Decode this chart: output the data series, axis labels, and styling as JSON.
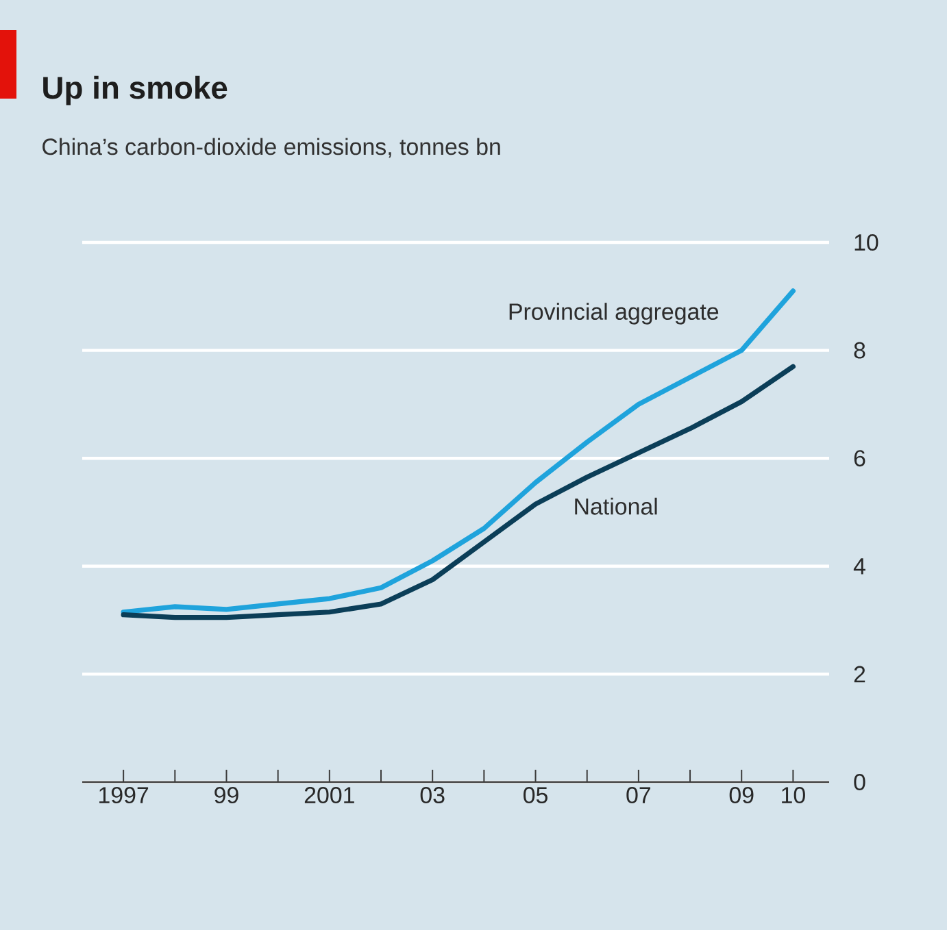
{
  "chart_data": {
    "type": "line",
    "title": "Up in smoke",
    "subtitle": "China’s carbon-dioxide emissions, tonnes bn",
    "x": [
      1997,
      1998,
      1999,
      2000,
      2001,
      2002,
      2003,
      2004,
      2005,
      2006,
      2007,
      2008,
      2009,
      2010
    ],
    "series": [
      {
        "name": "Provincial aggregate",
        "color": "#1fa3dc",
        "values": [
          3.15,
          3.25,
          3.2,
          3.3,
          3.4,
          3.6,
          4.1,
          4.7,
          5.55,
          6.3,
          7.0,
          7.5,
          8.0,
          9.1
        ]
      },
      {
        "name": "National",
        "color": "#0b3e58",
        "values": [
          3.1,
          3.05,
          3.05,
          3.1,
          3.15,
          3.3,
          3.75,
          4.45,
          5.15,
          5.65,
          6.1,
          6.55,
          7.05,
          7.7
        ]
      }
    ],
    "xlim": [
      1996.2,
      2010.7
    ],
    "xticks": [
      {
        "value": 1997,
        "label": "1997"
      },
      {
        "value": 1998,
        "label": null
      },
      {
        "value": 1999,
        "label": "99"
      },
      {
        "value": 2000,
        "label": null
      },
      {
        "value": 2001,
        "label": "2001"
      },
      {
        "value": 2002,
        "label": null
      },
      {
        "value": 2003,
        "label": "03"
      },
      {
        "value": 2004,
        "label": null
      },
      {
        "value": 2005,
        "label": "05"
      },
      {
        "value": 2006,
        "label": null
      },
      {
        "value": 2007,
        "label": "07"
      },
      {
        "value": 2008,
        "label": null
      },
      {
        "value": 2009,
        "label": "09"
      },
      {
        "value": 2010,
        "label": "10"
      }
    ],
    "ylim": [
      0,
      10
    ],
    "yticks": [
      0,
      2,
      4,
      6,
      8,
      10
    ],
    "grid": "y",
    "legend": false,
    "marker": "none",
    "line_style": "solid"
  }
}
